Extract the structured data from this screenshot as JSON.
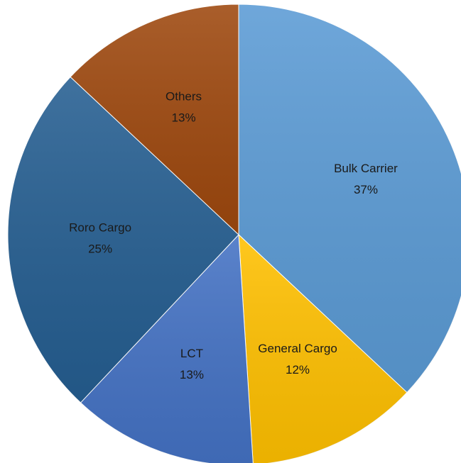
{
  "chart_data": {
    "type": "pie",
    "categories": [
      "Bulk Carrier",
      "General Cargo",
      "LCT",
      "Roro Cargo",
      "Others"
    ],
    "values": [
      37,
      12,
      13,
      25,
      13
    ],
    "value_labels": [
      "37%",
      "12%",
      "13%",
      "25%",
      "13%"
    ],
    "colors": [
      "#5b9bd5",
      "#ffc000",
      "#4472c4",
      "#255e91",
      "#9e480e"
    ]
  }
}
